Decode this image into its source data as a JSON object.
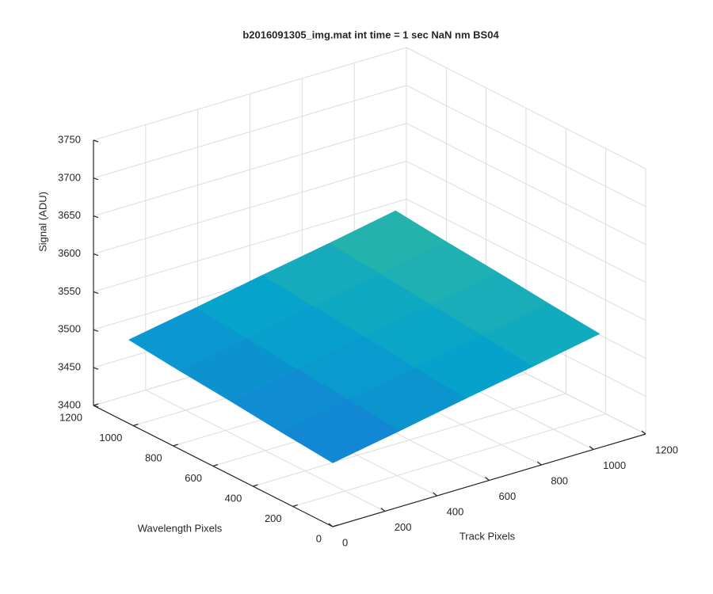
{
  "chart_data": {
    "type": "surface",
    "title": "b2016091305_img.mat int time = 1 sec  NaN nm BS04",
    "xlabel": "Track Pixels",
    "ylabel": "Wavelength Pixels",
    "zlabel": "Signal (ADU)",
    "x": [
      1,
      256,
      512,
      768,
      1024
    ],
    "y": [
      1,
      256,
      512,
      768,
      1024
    ],
    "z": [
      [
        3484,
        3500,
        3517,
        3533,
        3550
      ],
      [
        3490,
        3507,
        3523,
        3540,
        3556
      ],
      [
        3497,
        3513,
        3530,
        3546,
        3563
      ],
      [
        3503,
        3520,
        3536,
        3553,
        3569
      ],
      [
        3510,
        3526,
        3543,
        3559,
        3576
      ]
    ],
    "xlim": [
      0,
      1200
    ],
    "xticks": [
      0,
      200,
      400,
      600,
      800,
      1000,
      1200
    ],
    "ylim": [
      0,
      1200
    ],
    "yticks": [
      0,
      200,
      400,
      600,
      800,
      1000,
      1200
    ],
    "zlim": [
      3400,
      3750
    ],
    "zticks": [
      3400,
      3450,
      3500,
      3550,
      3600,
      3650,
      3700,
      3750
    ],
    "grid": true,
    "colormap": "parula"
  }
}
